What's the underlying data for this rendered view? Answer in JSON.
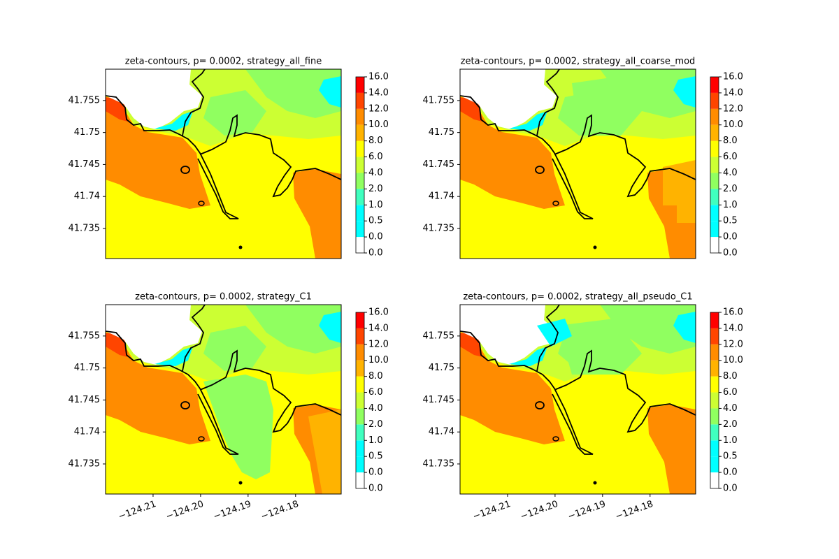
{
  "chart_data": [
    {
      "type": "contour",
      "title": "zeta-contours, p= 0.0002, strategy_all_fine",
      "xlim": [
        -124.22,
        -124.1704
      ],
      "ylim": [
        41.7303,
        41.7599
      ],
      "yticks": [
        41.735,
        41.74,
        41.745,
        41.75,
        41.755
      ],
      "levels": [
        {
          "value": 0,
          "label": "0.0"
        },
        {
          "value": 0,
          "label": "0.0"
        },
        {
          "value": 0.5,
          "label": "0.5"
        },
        {
          "value": 1,
          "label": "1.0"
        },
        {
          "value": 2,
          "label": "2.0"
        },
        {
          "value": 4,
          "label": "4.0"
        },
        {
          "value": 6,
          "label": "6.0"
        },
        {
          "value": 8,
          "label": "8.0"
        },
        {
          "value": 10,
          "label": "10.0"
        },
        {
          "value": 12,
          "label": "12.0"
        },
        {
          "value": 14,
          "label": "14.0"
        },
        {
          "value": 16,
          "label": "16.0"
        }
      ],
      "colors": [
        "#ffffff",
        "#00ffff",
        "#00ffff",
        "#40ffbf",
        "#90ff60",
        "#ccff33",
        "#ffff00",
        "#ffb300",
        "#ff8c00",
        "#ff4500",
        "#ff0000"
      ]
    },
    {
      "type": "contour",
      "title": "zeta-contours, p= 0.0002, strategy_all_coarse_mod",
      "xlim": [
        -124.22,
        -124.1704
      ],
      "ylim": [
        41.7303,
        41.7599
      ],
      "yticks": [
        41.735,
        41.74,
        41.745,
        41.75,
        41.755
      ],
      "levels": [
        {
          "value": 0,
          "label": "0.0"
        },
        {
          "value": 0,
          "label": "0.0"
        },
        {
          "value": 0.5,
          "label": "0.5"
        },
        {
          "value": 1,
          "label": "1.0"
        },
        {
          "value": 2,
          "label": "2.0"
        },
        {
          "value": 4,
          "label": "4.0"
        },
        {
          "value": 6,
          "label": "6.0"
        },
        {
          "value": 8,
          "label": "8.0"
        },
        {
          "value": 10,
          "label": "10.0"
        },
        {
          "value": 12,
          "label": "12.0"
        },
        {
          "value": 14,
          "label": "14.0"
        },
        {
          "value": 16,
          "label": "16.0"
        }
      ],
      "colors": [
        "#ffffff",
        "#00ffff",
        "#00ffff",
        "#40ffbf",
        "#90ff60",
        "#ccff33",
        "#ffff00",
        "#ffb300",
        "#ff8c00",
        "#ff4500",
        "#ff0000"
      ]
    },
    {
      "type": "contour",
      "title": "zeta-contours, p= 0.0002, strategy_C1",
      "xlim": [
        -124.22,
        -124.1704
      ],
      "ylim": [
        41.7303,
        41.7599
      ],
      "xticks": [
        {
          "value": -124.21,
          "label": "−124.21"
        },
        {
          "value": -124.2,
          "label": "−124.20"
        },
        {
          "value": -124.19,
          "label": "−124.19"
        },
        {
          "value": -124.18,
          "label": "−124.18"
        }
      ],
      "yticks": [
        41.735,
        41.74,
        41.745,
        41.75,
        41.755
      ],
      "levels": [
        {
          "value": 0,
          "label": "0.0"
        },
        {
          "value": 0,
          "label": "0.0"
        },
        {
          "value": 0.5,
          "label": "0.5"
        },
        {
          "value": 1,
          "label": "1.0"
        },
        {
          "value": 2,
          "label": "2.0"
        },
        {
          "value": 4,
          "label": "4.0"
        },
        {
          "value": 6,
          "label": "6.0"
        },
        {
          "value": 8,
          "label": "8.0"
        },
        {
          "value": 10,
          "label": "10.0"
        },
        {
          "value": 12,
          "label": "12.0"
        },
        {
          "value": 14,
          "label": "14.0"
        },
        {
          "value": 16,
          "label": "16.0"
        }
      ],
      "colors": [
        "#ffffff",
        "#00ffff",
        "#00ffff",
        "#40ffbf",
        "#90ff60",
        "#ccff33",
        "#ffff00",
        "#ffb300",
        "#ff8c00",
        "#ff4500",
        "#ff0000"
      ]
    },
    {
      "type": "contour",
      "title": "zeta-contours, p= 0.0002, strategy_all_pseudo_C1",
      "xlim": [
        -124.22,
        -124.1704
      ],
      "ylim": [
        41.7303,
        41.7599
      ],
      "xticks": [
        {
          "value": -124.21,
          "label": "−124.21"
        },
        {
          "value": -124.2,
          "label": "−124.20"
        },
        {
          "value": -124.19,
          "label": "−124.19"
        },
        {
          "value": -124.18,
          "label": "−124.18"
        }
      ],
      "yticks": [
        41.735,
        41.74,
        41.745,
        41.75,
        41.755
      ],
      "levels": [
        {
          "value": 0,
          "label": "0.0"
        },
        {
          "value": 0,
          "label": "0.0"
        },
        {
          "value": 0.5,
          "label": "0.5"
        },
        {
          "value": 1,
          "label": "1.0"
        },
        {
          "value": 2,
          "label": "2.0"
        },
        {
          "value": 4,
          "label": "4.0"
        },
        {
          "value": 6,
          "label": "6.0"
        },
        {
          "value": 8,
          "label": "8.0"
        },
        {
          "value": 10,
          "label": "10.0"
        },
        {
          "value": 12,
          "label": "12.0"
        },
        {
          "value": 14,
          "label": "14.0"
        },
        {
          "value": 16,
          "label": "16.0"
        }
      ],
      "colors": [
        "#ffffff",
        "#00ffff",
        "#00ffff",
        "#40ffbf",
        "#90ff60",
        "#ccff33",
        "#ffff00",
        "#ffb300",
        "#ff8c00",
        "#ff4500",
        "#ff0000"
      ]
    }
  ]
}
